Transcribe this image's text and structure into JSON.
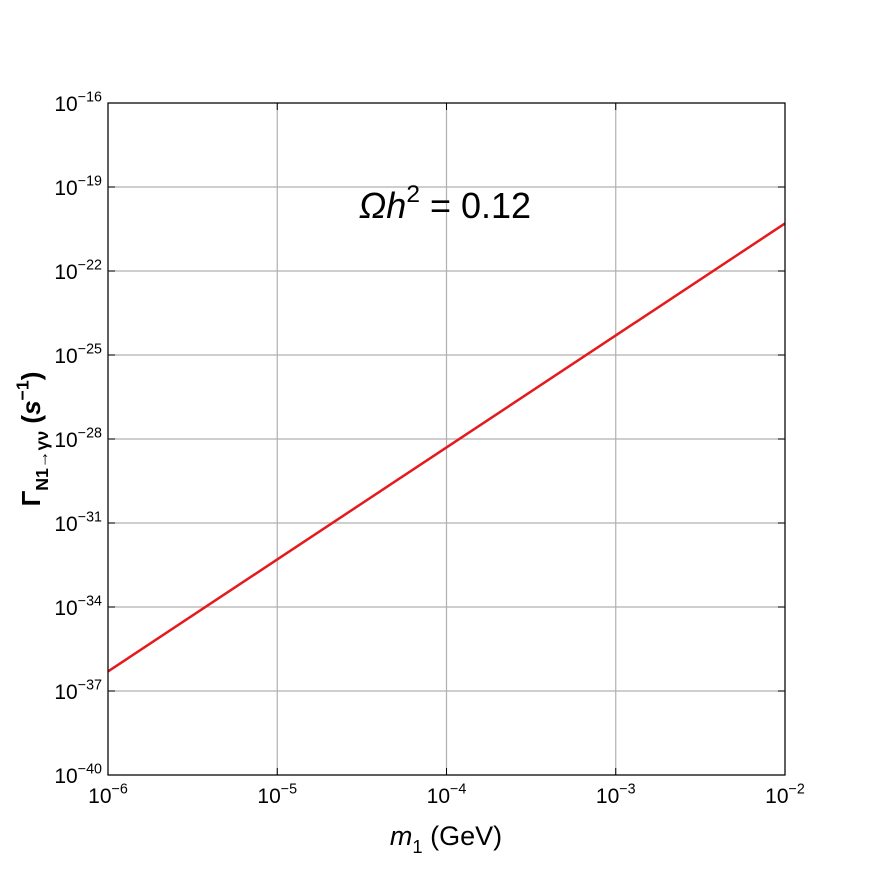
{
  "chart_data": {
    "type": "line",
    "xlabel": "m1 (GeV)",
    "ylabel": "ΓN1→γν (s−1)",
    "annotation": "Ωh2 = 0.12",
    "x": [
      1e-06,
      1e-05,
      0.0001,
      0.001,
      0.01
    ],
    "series": [
      {
        "name": "Γ",
        "color": "#e41a1c",
        "values": [
          5e-37,
          5e-33,
          5e-29,
          5e-25,
          5e-21
        ]
      }
    ],
    "xscale": "log",
    "yscale": "log",
    "xlim": [
      1e-06,
      0.01
    ],
    "ylim": [
      1e-40,
      1e-16
    ],
    "xticks": [
      {
        "value": 1e-06,
        "label": "10−6"
      },
      {
        "value": 1e-05,
        "label": "10−5"
      },
      {
        "value": 0.0001,
        "label": "10−4"
      },
      {
        "value": 0.001,
        "label": "10−3"
      },
      {
        "value": 0.01,
        "label": "10−2"
      }
    ],
    "yticks": [
      {
        "value": 1e-40,
        "label": "10−40"
      },
      {
        "value": 1e-37,
        "label": "10−37"
      },
      {
        "value": 1e-34,
        "label": "10−34"
      },
      {
        "value": 1e-31,
        "label": "10−31"
      },
      {
        "value": 1e-28,
        "label": "10−28"
      },
      {
        "value": 1e-25,
        "label": "10−25"
      },
      {
        "value": 1e-22,
        "label": "10−22"
      },
      {
        "value": 1e-19,
        "label": "10−19"
      },
      {
        "value": 1e-16,
        "label": "10−16"
      }
    ],
    "grid": true,
    "grid_color": "#b0b0b0"
  }
}
